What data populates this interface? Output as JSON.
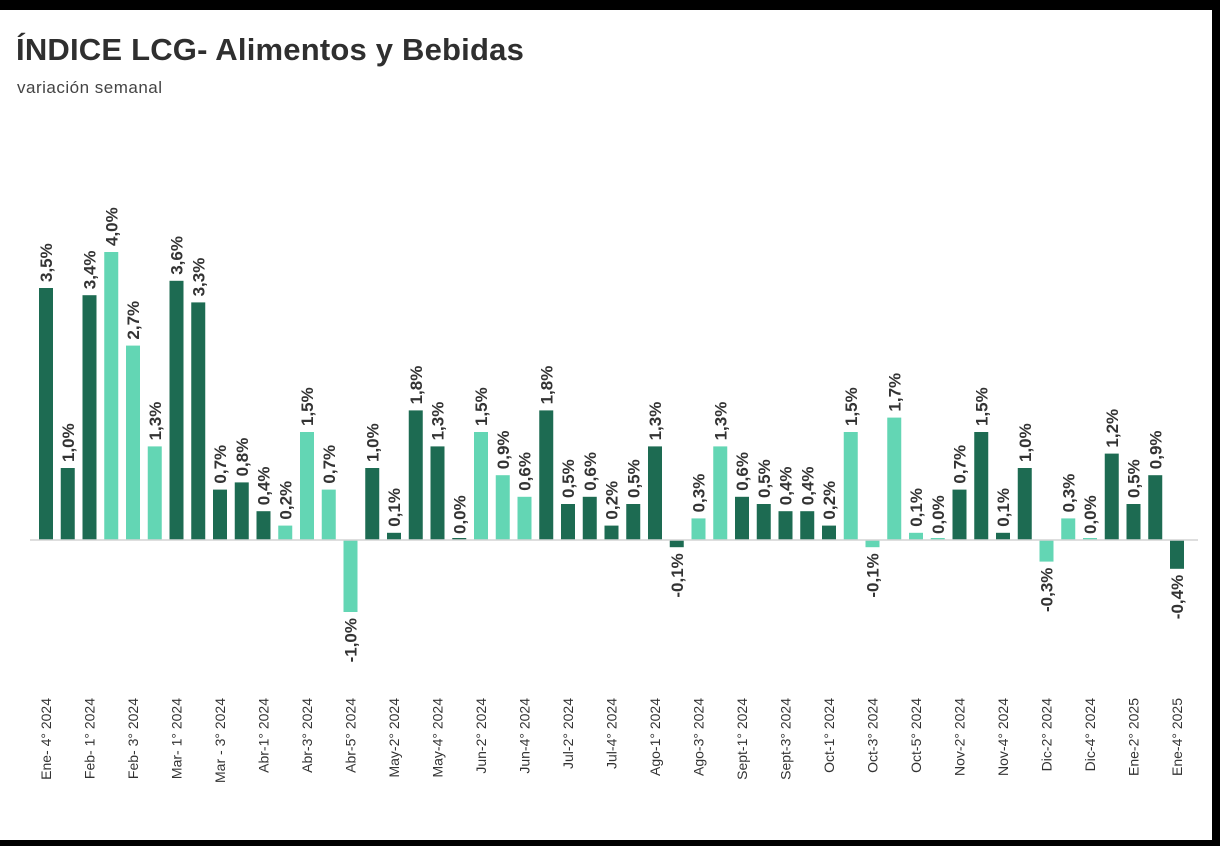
{
  "colors": {
    "dark": "#1d6b52",
    "light": "#63d6b4",
    "baseline": "#d4d4d4",
    "label": "#333333"
  },
  "chart_data": {
    "type": "bar",
    "title": "ÍNDICE LCG- Alimentos y Bebidas",
    "subtitle": "variación semanal",
    "xlabel": "",
    "ylabel": "",
    "ylim": [
      -1.5,
      4.5
    ],
    "grid": false,
    "legend": "none",
    "categories": [
      "Ene- 4° 2024",
      "",
      "Feb- 1° 2024",
      "",
      "Feb- 3° 2024",
      "",
      "Mar- 1° 2024",
      "",
      "Mar - 3° 2024",
      "",
      "Abr-1° 2024",
      "",
      "Abr-3° 2024",
      "",
      "Abr-5° 2024",
      "",
      "May-2° 2024",
      "",
      "May-4° 2024",
      "",
      "Jun-2° 2024",
      "",
      "Jun-4° 2024",
      "",
      "Jul-2° 2024",
      "",
      "Jul-4° 2024",
      "",
      "Ago-1° 2024",
      "",
      "Ago-3° 2024",
      "",
      "Sept-1° 2024",
      "",
      "Sept-3° 2024",
      "",
      "Oct-1° 2024",
      "",
      "Oct-3° 2024",
      "",
      "Oct-5° 2024",
      "",
      "Nov-2° 2024",
      "",
      "Nov-4° 2024",
      "",
      "Dic-2° 2024",
      "",
      "Dic-4° 2024",
      "",
      "Ene-2° 2025",
      "",
      "Ene-4° 2025"
    ],
    "values": [
      3.5,
      1.0,
      3.4,
      4.0,
      2.7,
      1.3,
      3.6,
      3.3,
      0.7,
      0.8,
      0.4,
      0.2,
      1.5,
      0.7,
      -1.0,
      1.0,
      0.1,
      1.8,
      1.3,
      0.0,
      1.5,
      0.9,
      0.6,
      1.8,
      0.5,
      0.6,
      0.2,
      0.5,
      1.3,
      -0.1,
      0.3,
      1.3,
      0.6,
      0.5,
      0.4,
      0.4,
      0.2,
      1.5,
      -0.1,
      1.7,
      0.1,
      0.0,
      0.7,
      1.5,
      0.1,
      1.0,
      -0.3,
      0.3,
      0.0,
      1.2,
      0.5,
      0.9,
      -0.4
    ],
    "labels": [
      "3,5%",
      "1,0%",
      "3,4%",
      "4,0%",
      "2,7%",
      "1,3%",
      "3,6%",
      "3,3%",
      "0,7%",
      "0,8%",
      "0,4%",
      "0,2%",
      "1,5%",
      "0,7%",
      "-1,0%",
      "1,0%",
      "0,1%",
      "1,8%",
      "1,3%",
      "0,0%",
      "1,5%",
      "0,9%",
      "0,6%",
      "1,8%",
      "0,5%",
      "0,6%",
      "0,2%",
      "0,5%",
      "1,3%",
      "-0,1%",
      "0,3%",
      "1,3%",
      "0,6%",
      "0,5%",
      "0,4%",
      "0,4%",
      "0,2%",
      "1,5%",
      "-0,1%",
      "1,7%",
      "0,1%",
      "0,0%",
      "0,7%",
      "1,5%",
      "0,1%",
      "1,0%",
      "-0,3%",
      "0,3%",
      "0,0%",
      "1,2%",
      "0,5%",
      "0,9%",
      "-0,4%"
    ],
    "shades": [
      "dark",
      "dark",
      "dark",
      "light",
      "light",
      "light",
      "dark",
      "dark",
      "dark",
      "dark",
      "dark",
      "light",
      "light",
      "light",
      "light",
      "dark",
      "dark",
      "dark",
      "dark",
      "dark",
      "light",
      "light",
      "light",
      "dark",
      "dark",
      "dark",
      "dark",
      "dark",
      "dark",
      "dark",
      "light",
      "light",
      "dark",
      "dark",
      "dark",
      "dark",
      "dark",
      "light",
      "light",
      "light",
      "light",
      "light",
      "dark",
      "dark",
      "dark",
      "dark",
      "light",
      "light",
      "light",
      "dark",
      "dark",
      "dark",
      "dark"
    ]
  }
}
